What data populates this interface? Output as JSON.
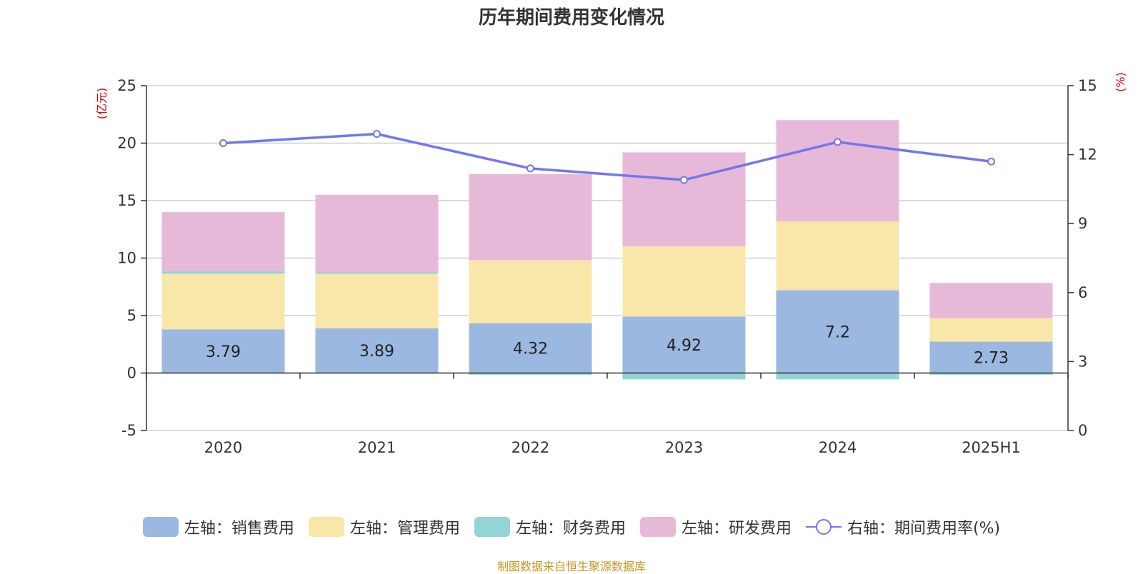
{
  "title": "历年期间费用变化情况",
  "source": "制图数据来自恒生聚源数据库",
  "chart_data": {
    "type": "bar",
    "stacked": true,
    "categories": [
      "2020",
      "2021",
      "2022",
      "2023",
      "2024",
      "2025H1"
    ],
    "left_axis": {
      "unit": "(亿元)",
      "ylim": [
        -5,
        25
      ],
      "ticks": [
        -5,
        0,
        5,
        10,
        15,
        20,
        25
      ]
    },
    "right_axis": {
      "unit": "(%)",
      "ylim": [
        0,
        15
      ],
      "ticks": [
        0,
        3,
        6,
        9,
        12,
        15
      ]
    },
    "grid": true,
    "legend_position": "bottom",
    "series": [
      {
        "name": "左轴：销售费用",
        "axis": "left",
        "type": "bar",
        "color": "#9bb8e1",
        "values": [
          3.79,
          3.89,
          4.32,
          4.92,
          7.2,
          2.73
        ],
        "data_labels": [
          "3.79",
          "3.89",
          "4.32",
          "4.92",
          "7.2",
          "2.73"
        ]
      },
      {
        "name": "左轴：管理费用",
        "axis": "left",
        "type": "bar",
        "color": "#f8e7a8",
        "values": [
          4.85,
          4.75,
          5.5,
          6.1,
          6.0,
          2.05
        ]
      },
      {
        "name": "左轴：财务费用",
        "axis": "left",
        "type": "bar",
        "color": "#93d4d4",
        "values": [
          0.22,
          0.12,
          -0.15,
          -0.55,
          -0.55,
          -0.15
        ]
      },
      {
        "name": "左轴：研发费用",
        "axis": "left",
        "type": "bar",
        "color": "#e7b9d9",
        "values": [
          5.14,
          6.74,
          7.48,
          8.18,
          8.8,
          3.06
        ]
      },
      {
        "name": "右轴：期间费用率(%)",
        "axis": "right",
        "type": "line",
        "color": "#7377ea",
        "values": [
          12.5,
          12.9,
          11.4,
          10.9,
          12.55,
          11.7
        ]
      }
    ]
  }
}
